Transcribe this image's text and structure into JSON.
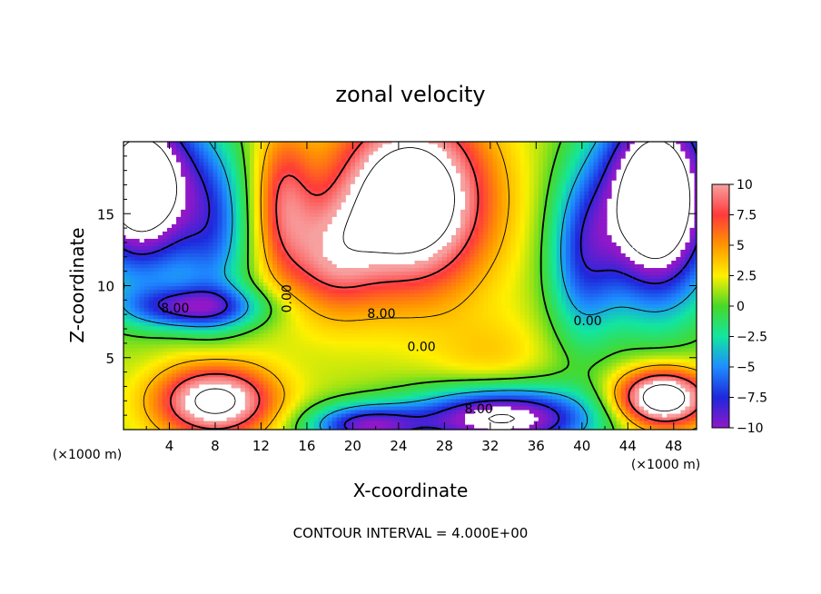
{
  "chart_data": {
    "type": "heatmap",
    "title": "zonal velocity",
    "xlabel": "X-coordinate",
    "ylabel": "Z-coordinate",
    "x_unit": "(×1000 m)",
    "z_unit": "(×1000 m)",
    "xlim": [
      0,
      50
    ],
    "ylim": [
      0,
      20
    ],
    "x_ticks": [
      4,
      8,
      12,
      16,
      20,
      24,
      28,
      32,
      36,
      40,
      44,
      48
    ],
    "y_ticks": [
      5,
      10,
      15
    ],
    "footer": "CONTOUR INTERVAL = 4.000E+00",
    "contour_interval": 4.0,
    "colorbar": {
      "range": [
        -10,
        10
      ],
      "ticks": [
        "10",
        "7.5",
        "5",
        "2.5",
        "0",
        "−2.5",
        "−5",
        "−7.5",
        "−10"
      ],
      "colors": [
        "#f7a0a0",
        "#ff3a3a",
        "#ff9600",
        "#fff000",
        "#48d828",
        "#12e6a0",
        "#1e8cff",
        "#1e28dc",
        "#9018c8"
      ]
    },
    "contour_labels": [
      {
        "text": "8.00",
        "x": 4.5,
        "z": 8.4
      },
      {
        "text": "0.00",
        "x": 14.3,
        "z": 9.1,
        "rotate": -90
      },
      {
        "text": "8.00",
        "x": 22.5,
        "z": 8.0
      },
      {
        "text": "0.00",
        "x": 26.0,
        "z": 5.7
      },
      {
        "text": "0.00",
        "x": 40.5,
        "z": 7.5
      },
      {
        "text": "8.00",
        "x": 31.0,
        "z": 1.4
      }
    ]
  }
}
